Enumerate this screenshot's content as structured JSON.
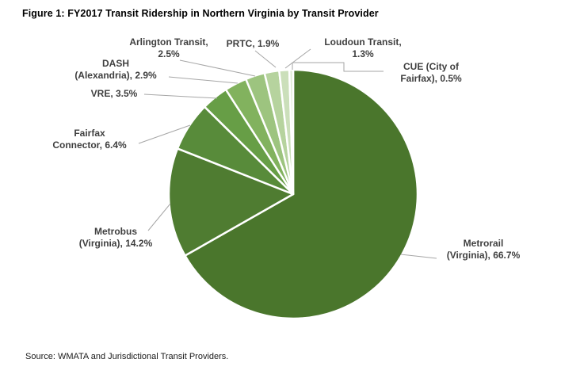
{
  "title": "Figure 1: FY2017 Transit Ridership in Northern Virginia by Transit Provider",
  "source": "Source: WMATA and Jurisdictional Transit Providers.",
  "chart_data": {
    "type": "pie",
    "title": "FY2017 Transit Ridership in Northern Virginia by Transit Provider",
    "unit": "percent",
    "start_angle_deg": 0,
    "direction": "clockwise",
    "legend": "none",
    "slices": [
      {
        "name": "Metrorail (Virginia)",
        "value": 66.7,
        "color": "#4A762C",
        "label_lines": [
          "Metrorail",
          "(Virginia), 66.7%"
        ]
      },
      {
        "name": "Metrobus (Virginia)",
        "value": 14.2,
        "color": "#4F7C31",
        "label_lines": [
          "Metrobus",
          "(Virginia), 14.2%"
        ]
      },
      {
        "name": "Fairfax Connector",
        "value": 6.4,
        "color": "#588B3A",
        "label_lines": [
          "Fairfax",
          "Connector, 6.4%"
        ]
      },
      {
        "name": "VRE",
        "value": 3.5,
        "color": "#679E46",
        "label_lines": [
          "VRE, 3.5%"
        ]
      },
      {
        "name": "DASH (Alexandria)",
        "value": 2.9,
        "color": "#82B25E",
        "label_lines": [
          "DASH",
          "(Alexandria), 2.9%"
        ]
      },
      {
        "name": "Arlington Transit",
        "value": 2.5,
        "color": "#9DC47F",
        "label_lines": [
          "Arlington Transit,",
          "2.5%"
        ]
      },
      {
        "name": "PRTC",
        "value": 1.9,
        "color": "#B6D39E",
        "label_lines": [
          "PRTC, 1.9%"
        ]
      },
      {
        "name": "Loudoun Transit",
        "value": 1.3,
        "color": "#CBDFBA",
        "label_lines": [
          "Loudoun Transit,",
          "1.3%"
        ]
      },
      {
        "name": "CUE (City of Fairfax)",
        "value": 0.5,
        "color": "#E0ECD7",
        "label_lines": [
          "CUE (City of",
          "Fairfax), 0.5%"
        ]
      }
    ],
    "colors": {
      "leader_line": "#A6A6A6",
      "slice_border": "#FFFFFF",
      "label_text": "#3F3F3F",
      "title_text": "#000000"
    }
  }
}
